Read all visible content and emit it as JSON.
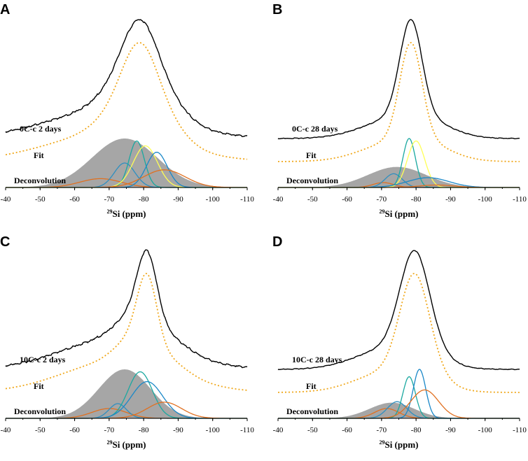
{
  "chart_data": [
    {
      "panel": "A",
      "type": "line",
      "sample_label": "0C-c 2 days",
      "fit_label": "Fit",
      "deconvolution_label": "Deconvolution",
      "xlabel_sup": "29",
      "xlabel_main": "Si (ppm)",
      "xlim": [
        -40,
        -110
      ],
      "x_ticks": [
        -40,
        -50,
        -60,
        -70,
        -80,
        -90,
        -100,
        -110
      ],
      "experimental": {
        "noise": 0.05,
        "components": [
          {
            "center": -70,
            "width": 18,
            "amp": 0.25
          },
          {
            "center": -75,
            "width": 7,
            "amp": 0.25
          },
          {
            "center": -79,
            "width": 5,
            "amp": 0.55
          },
          {
            "center": -86,
            "width": 6,
            "amp": 0.18
          }
        ]
      },
      "fit": {
        "components": [
          {
            "center": -70,
            "width": 18,
            "amp": 0.25
          },
          {
            "center": -75,
            "width": 7,
            "amp": 0.25
          },
          {
            "center": -79,
            "width": 5,
            "amp": 0.55
          },
          {
            "center": -86,
            "width": 6,
            "amp": 0.18
          }
        ]
      },
      "deconvolution": [
        {
          "color": "#a6a6a6",
          "filled": true,
          "center": -74.5,
          "width": 9.5,
          "amp": 1.0
        },
        {
          "color": "#e07020",
          "center": -67.5,
          "width": 6.0,
          "amp": 0.18
        },
        {
          "color": "#2e8fc0",
          "center": -74.5,
          "width": 3.0,
          "amp": 0.5
        },
        {
          "color": "#1aa8a0",
          "center": -78.0,
          "width": 2.2,
          "amp": 0.95
        },
        {
          "color": "#ffff55",
          "center": -80.5,
          "width": 3.5,
          "amp": 0.85
        },
        {
          "color": "#1a88c8",
          "center": -83.8,
          "width": 3.0,
          "amp": 0.72
        },
        {
          "color": "#e07020",
          "center": -86.0,
          "width": 6.0,
          "amp": 0.36
        }
      ]
    },
    {
      "panel": "B",
      "type": "line",
      "sample_label": "0C-c 28 days",
      "fit_label": "Fit",
      "deconvolution_label": "Deconvolution",
      "xlabel_sup": "29",
      "xlabel_main": "Si (ppm)",
      "xlim": [
        -40,
        -110
      ],
      "x_ticks": [
        -40,
        -50,
        -60,
        -70,
        -80,
        -90,
        -100,
        -110
      ],
      "experimental": {
        "noise": 0.02,
        "components": [
          {
            "center": -75,
            "width": 10,
            "amp": 0.18
          },
          {
            "center": -78.5,
            "width": 3.2,
            "amp": 0.85
          },
          {
            "center": -84,
            "width": 7,
            "amp": 0.06
          }
        ]
      },
      "fit": {
        "components": [
          {
            "center": -75,
            "width": 10,
            "amp": 0.18
          },
          {
            "center": -78.5,
            "width": 3.2,
            "amp": 0.85
          },
          {
            "center": -84,
            "width": 7,
            "amp": 0.06
          }
        ]
      },
      "deconvolution": [
        {
          "color": "#a6a6a6",
          "filled": true,
          "center": -74.5,
          "width": 8.5,
          "amp": 0.42
        },
        {
          "color": "#e07020",
          "center": -70.5,
          "width": 3.0,
          "amp": 0.1
        },
        {
          "color": "#2e8fc0",
          "center": -73.5,
          "width": 2.5,
          "amp": 0.28
        },
        {
          "color": "#1aa8a0",
          "center": -78.0,
          "width": 1.8,
          "amp": 1.0
        },
        {
          "color": "#ffff55",
          "center": -80.0,
          "width": 2.5,
          "amp": 0.95
        },
        {
          "color": "#1a88c8",
          "center": -83.5,
          "width": 6.0,
          "amp": 0.2
        },
        {
          "color": "#e07020",
          "center": -86.0,
          "width": 5.0,
          "amp": 0.05
        }
      ]
    },
    {
      "panel": "C",
      "type": "line",
      "sample_label": "10C-c 2 days",
      "fit_label": "Fit",
      "deconvolution_label": "Deconvolution",
      "xlabel_sup": "29",
      "xlabel_main": "Si (ppm)",
      "xlim": [
        -40,
        -110
      ],
      "x_ticks": [
        -40,
        -50,
        -60,
        -70,
        -80,
        -90,
        -100,
        -110
      ],
      "experimental": {
        "noise": 0.05,
        "components": [
          {
            "center": -73,
            "width": 16,
            "amp": 0.3
          },
          {
            "center": -77,
            "width": 5,
            "amp": 0.2
          },
          {
            "center": -81,
            "width": 2.8,
            "amp": 0.62
          },
          {
            "center": -86,
            "width": 6,
            "amp": 0.12
          }
        ]
      },
      "fit": {
        "components": [
          {
            "center": -73,
            "width": 16,
            "amp": 0.3
          },
          {
            "center": -77,
            "width": 5,
            "amp": 0.2
          },
          {
            "center": -81,
            "width": 2.8,
            "amp": 0.62
          },
          {
            "center": -86,
            "width": 6,
            "amp": 0.12
          }
        ]
      },
      "deconvolution": [
        {
          "color": "#a6a6a6",
          "filled": true,
          "center": -74.5,
          "width": 7.5,
          "amp": 1.0
        },
        {
          "color": "#e07020",
          "center": -70.0,
          "width": 5.0,
          "amp": 0.2
        },
        {
          "color": "#2e8fc0",
          "center": -72.5,
          "width": 2.5,
          "amp": 0.3
        },
        {
          "color": "#1aa8a0",
          "center": -79.0,
          "width": 3.5,
          "amp": 0.95
        },
        {
          "color": "#1a88c8",
          "center": -81.0,
          "width": 4.5,
          "amp": 0.75
        },
        {
          "color": "#e07020",
          "center": -86.0,
          "width": 5.0,
          "amp": 0.33
        }
      ]
    },
    {
      "panel": "D",
      "type": "line",
      "sample_label": "10C-c 28 days",
      "fit_label": "Fit",
      "deconvolution_label": "Deconvolution",
      "xlabel_sup": "29",
      "xlabel_main": "Si (ppm)",
      "xlim": [
        -40,
        -110
      ],
      "x_ticks": [
        -40,
        -50,
        -60,
        -70,
        -80,
        -90,
        -100,
        -110
      ],
      "experimental": {
        "noise": 0.02,
        "components": [
          {
            "center": -73,
            "width": 10,
            "amp": 0.18
          },
          {
            "center": -79.5,
            "width": 4.2,
            "amp": 0.8
          },
          {
            "center": -84,
            "width": 5,
            "amp": 0.08
          }
        ]
      },
      "fit": {
        "components": [
          {
            "center": -73,
            "width": 10,
            "amp": 0.18
          },
          {
            "center": -79.5,
            "width": 4.2,
            "amp": 0.8
          },
          {
            "center": -84,
            "width": 5,
            "amp": 0.08
          }
        ]
      },
      "deconvolution": [
        {
          "color": "#a6a6a6",
          "filled": true,
          "center": -73.0,
          "width": 6.5,
          "amp": 0.32
        },
        {
          "color": "#e07020",
          "center": -71.5,
          "width": 3.5,
          "amp": 0.2
        },
        {
          "color": "#2e8fc0",
          "center": -74.5,
          "width": 2.8,
          "amp": 0.34
        },
        {
          "color": "#1aa8a0",
          "center": -78.0,
          "width": 1.8,
          "amp": 0.85
        },
        {
          "color": "#1a88c8",
          "center": -81.0,
          "width": 1.8,
          "amp": 1.0
        },
        {
          "color": "#e07020",
          "center": -82.5,
          "width": 4.0,
          "amp": 0.58
        }
      ]
    }
  ]
}
